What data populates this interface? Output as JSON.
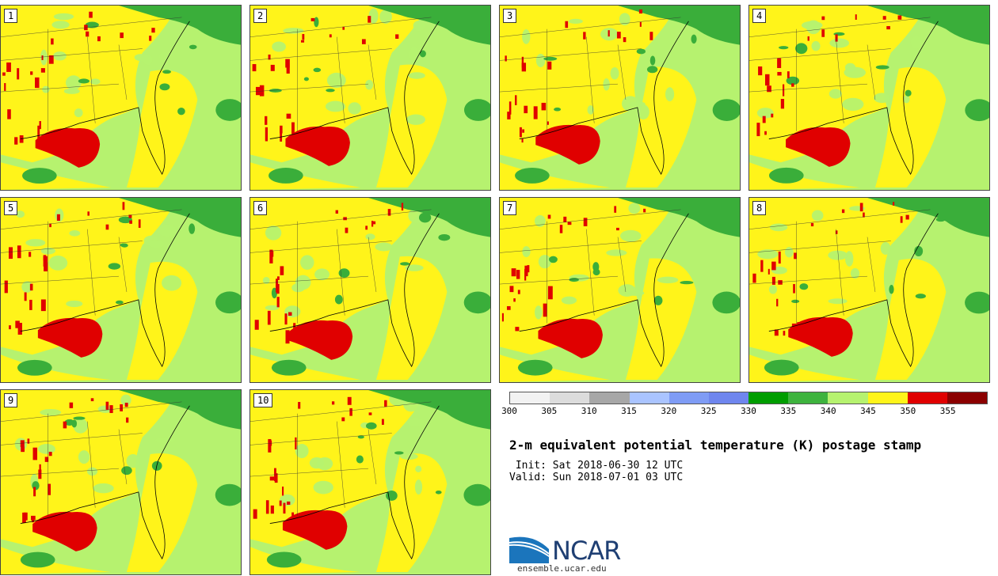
{
  "panels": [
    {
      "label": "1"
    },
    {
      "label": "2"
    },
    {
      "label": "3"
    },
    {
      "label": "4"
    },
    {
      "label": "5"
    },
    {
      "label": "6"
    },
    {
      "label": "7"
    },
    {
      "label": "8"
    },
    {
      "label": "9"
    },
    {
      "label": "10"
    }
  ],
  "colorbar": {
    "colors": [
      "#f2f2f2",
      "#dcdcdc",
      "#a7a7a7",
      "#aac4ff",
      "#7f9cf5",
      "#6f86ee",
      "#009d00",
      "#3eb33e",
      "#b6f26f",
      "#fff41a",
      "#e00000",
      "#8b0000"
    ],
    "ticks": [
      "300",
      "305",
      "310",
      "315",
      "320",
      "325",
      "330",
      "335",
      "340",
      "345",
      "350",
      "355"
    ]
  },
  "palette": {
    "green_dark": "#3aae3a",
    "green_light": "#b6f26f",
    "yellow": "#fff41a",
    "red": "#e00000"
  },
  "title": "2-m equivalent potential temperature (K) postage stamp",
  "init": " Init: Sat 2018-06-30 12 UTC",
  "valid": "Valid: Sun 2018-07-01 03 UTC",
  "logo": {
    "text": "NCAR",
    "url": "ensemble.ucar.edu"
  }
}
